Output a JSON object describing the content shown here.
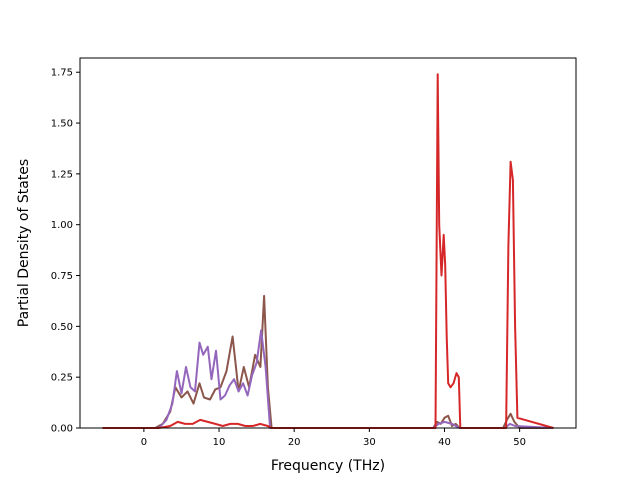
{
  "chart_data": {
    "type": "line",
    "title": "",
    "xlabel": "Frequency (THz)",
    "ylabel": "Partial Density of States",
    "xlim": [
      -8.5,
      57.5
    ],
    "ylim": [
      0,
      1.82
    ],
    "xticks": [
      0,
      10,
      20,
      30,
      40,
      50
    ],
    "xtick_labels": [
      "0",
      "10",
      "20",
      "30",
      "40",
      "50"
    ],
    "yticks": [
      0,
      0.25,
      0.5,
      0.75,
      1.0,
      1.25,
      1.5,
      1.75
    ],
    "ytick_labels": [
      "0.00",
      "0.25",
      "0.50",
      "0.75",
      "1.00",
      "1.25",
      "1.50",
      "1.75"
    ],
    "grid": false,
    "legend": "none",
    "series": [
      {
        "color": "#8c564b",
        "x": [
          -5.5,
          1.5,
          2.5,
          3.5,
          4.2,
          5.0,
          5.8,
          6.6,
          7.4,
          8.0,
          8.8,
          9.5,
          10.2,
          11.0,
          11.8,
          12.6,
          13.3,
          14.0,
          14.8,
          15.5,
          16.0,
          16.5,
          17.0,
          38.5,
          39.0,
          39.5,
          40.0,
          40.5,
          41.0,
          41.5,
          42.0,
          47.8,
          48.3,
          48.8,
          49.3,
          50.0,
          54.5
        ],
        "y": [
          0,
          0,
          0.02,
          0.08,
          0.2,
          0.15,
          0.18,
          0.12,
          0.22,
          0.15,
          0.14,
          0.19,
          0.2,
          0.28,
          0.45,
          0.18,
          0.3,
          0.2,
          0.36,
          0.3,
          0.65,
          0.2,
          0,
          0,
          0.03,
          0.02,
          0.05,
          0.06,
          0.01,
          0.02,
          0,
          0,
          0.04,
          0.07,
          0.03,
          0,
          0
        ]
      },
      {
        "color": "#9467bd",
        "x": [
          -5.5,
          2.0,
          3.0,
          3.8,
          4.4,
          5.0,
          5.6,
          6.2,
          6.8,
          7.4,
          7.9,
          8.5,
          9.0,
          9.6,
          10.2,
          10.8,
          11.4,
          12.0,
          12.6,
          13.2,
          13.8,
          14.4,
          15.0,
          15.6,
          16.2,
          16.8,
          38.5,
          39.2,
          40.0,
          41.0,
          42.0,
          48.0,
          48.7,
          49.4,
          54.5
        ],
        "y": [
          0,
          0,
          0.04,
          0.12,
          0.28,
          0.17,
          0.3,
          0.2,
          0.18,
          0.42,
          0.36,
          0.4,
          0.24,
          0.38,
          0.14,
          0.16,
          0.21,
          0.24,
          0.18,
          0.22,
          0.16,
          0.26,
          0.32,
          0.48,
          0.3,
          0,
          0,
          0.02,
          0.03,
          0.02,
          0,
          0,
          0.02,
          0.01,
          0
        ]
      },
      {
        "color": "#d62728",
        "x": [
          -5.5,
          2.0,
          3.5,
          4.5,
          5.5,
          6.5,
          7.5,
          8.5,
          9.5,
          10.5,
          11.5,
          12.5,
          13.5,
          14.5,
          15.5,
          16.0,
          16.5,
          17.0,
          38.8,
          39.1,
          39.3,
          39.6,
          39.9,
          40.1,
          40.3,
          40.5,
          40.8,
          41.2,
          41.6,
          41.9,
          42.1,
          48.2,
          48.5,
          48.8,
          49.1,
          49.4,
          49.7,
          54.5
        ],
        "y": [
          0,
          0,
          0.01,
          0.03,
          0.02,
          0.02,
          0.04,
          0.03,
          0.02,
          0.01,
          0.02,
          0.02,
          0.01,
          0.01,
          0.02,
          0.015,
          0.01,
          0,
          0,
          1.74,
          1.0,
          0.75,
          0.95,
          0.8,
          0.45,
          0.22,
          0.2,
          0.22,
          0.27,
          0.25,
          0,
          0,
          0.9,
          1.31,
          1.22,
          0.5,
          0.05,
          0
        ]
      }
    ]
  }
}
